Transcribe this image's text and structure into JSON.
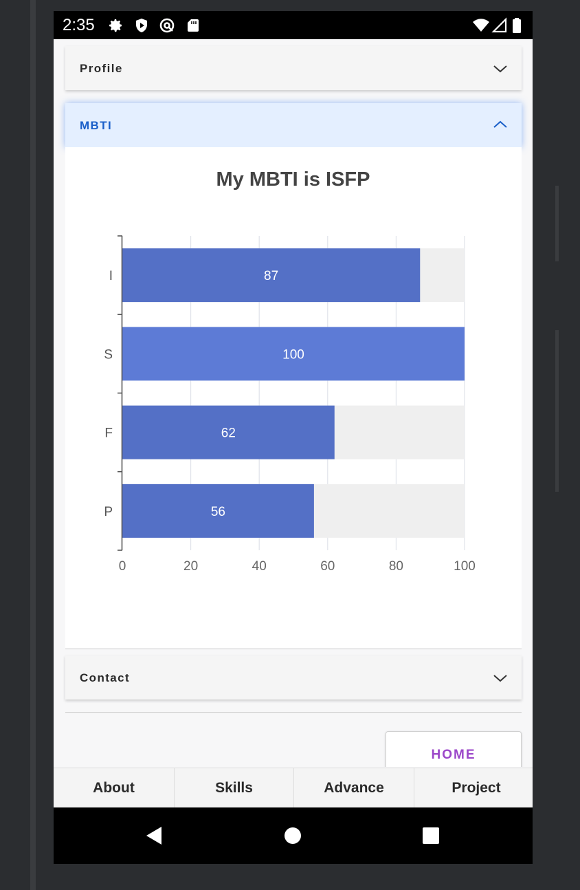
{
  "status_bar": {
    "time": "2:35",
    "left_icons": [
      "gear-icon",
      "shield-play-icon",
      "at-sign-icon",
      "sd-card-icon"
    ],
    "right_icons": [
      "wifi-icon",
      "cell-signal-icon",
      "battery-icon"
    ]
  },
  "accordion": {
    "profile_label": "Profile",
    "mbti_label": "MBTI",
    "contact_label": "Contact"
  },
  "chart_data": {
    "type": "bar",
    "orientation": "horizontal",
    "title": "My MBTI is ISFP",
    "categories": [
      "I",
      "S",
      "F",
      "P"
    ],
    "values": [
      87,
      100,
      62,
      56
    ],
    "xlim": [
      0,
      100
    ],
    "x_ticks": [
      "0",
      "20",
      "40",
      "60",
      "80",
      "100"
    ],
    "grid": true,
    "colors": {
      "bar": "#5470c6",
      "bar_highlight": "#5d7bd6",
      "background_track": "#efefef",
      "grid": "#e0e3ea"
    }
  },
  "home_button": {
    "label": "HOME"
  },
  "bottom_nav": {
    "items": [
      "About",
      "Skills",
      "Advance",
      "Project"
    ]
  },
  "system_nav": {
    "icons": [
      "back-triangle-icon",
      "home-circle-icon",
      "recents-square-icon"
    ]
  },
  "colors": {
    "accent_blue": "#1a5fc9",
    "home_purple": "#9b47c9"
  }
}
